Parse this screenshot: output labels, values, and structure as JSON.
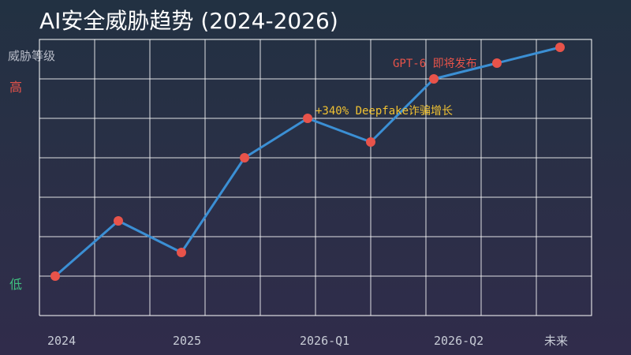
{
  "chart_data": {
    "type": "line",
    "title": "AI安全威胁趋势 (2024-2026)",
    "ylabel": "威胁等级",
    "y_level_labels": {
      "high": "高",
      "low": "低"
    },
    "colors": {
      "line": "#3b8fd4",
      "point": "#e8534a",
      "high_label": "#e8534a",
      "low_label": "#3fbf7f",
      "annotation_red": "#e8534a",
      "annotation_yellow": "#f1c232"
    },
    "ylim": [
      0,
      7
    ],
    "x_tick_labels": [
      "2024",
      "2025",
      "2026-Q1",
      "2026-Q2",
      "未来"
    ],
    "x": [
      0,
      1,
      2,
      3,
      4,
      5,
      6,
      7,
      8
    ],
    "series": [
      {
        "values": [
          1.0,
          2.4,
          1.6,
          4.0,
          5.0,
          4.4,
          6.0,
          6.4,
          6.8
        ]
      }
    ],
    "annotations": [
      {
        "text": "+340% Deepfake诈骗增长",
        "point_index": 4,
        "color": "yellow"
      },
      {
        "text": "GPT-6 即将发布",
        "point_index": 7,
        "color": "red"
      }
    ],
    "grid": true
  }
}
